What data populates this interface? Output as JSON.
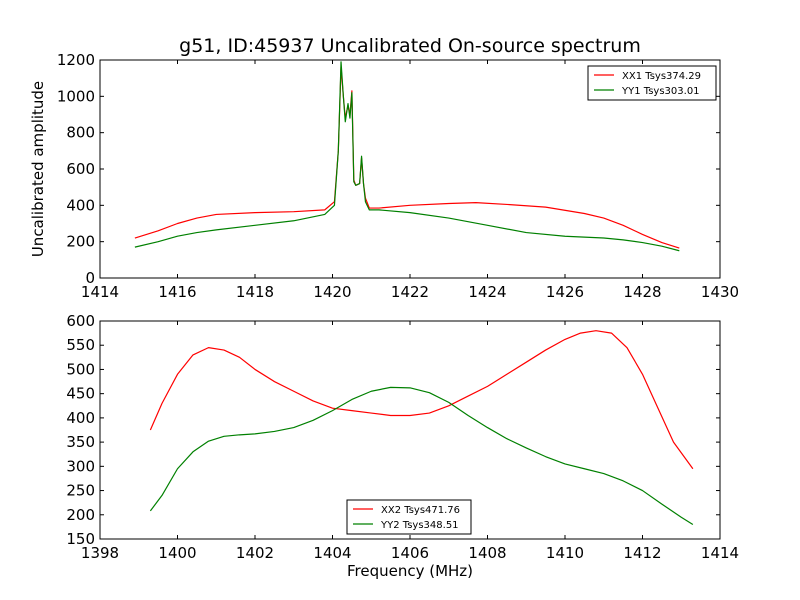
{
  "figure": {
    "title": "g51, ID:45937 Uncalibrated On-source spectrum"
  },
  "chart_data": [
    {
      "type": "line",
      "title": "g51, ID:45937 Uncalibrated On-source spectrum",
      "xlabel": "",
      "ylabel": "Uncalibrated amplitude",
      "xlim": [
        1414,
        1430
      ],
      "ylim": [
        0,
        1200
      ],
      "xticks": [
        1414,
        1416,
        1418,
        1420,
        1422,
        1424,
        1426,
        1428,
        1430
      ],
      "yticks": [
        0,
        200,
        400,
        600,
        800,
        1000,
        1200
      ],
      "legend_position": "top-right",
      "grid": false,
      "series": [
        {
          "name": "XX1 Tsys374.29",
          "color": "#ff0000",
          "x": [
            1414.9,
            1415.5,
            1416.0,
            1416.5,
            1417.0,
            1418.0,
            1419.0,
            1419.8,
            1420.05,
            1420.15,
            1420.22,
            1420.28,
            1420.33,
            1420.4,
            1420.45,
            1420.5,
            1420.55,
            1420.6,
            1420.7,
            1420.75,
            1420.8,
            1420.85,
            1420.95,
            1421.2,
            1422.0,
            1423.0,
            1423.7,
            1424.5,
            1425.5,
            1426.5,
            1427.0,
            1427.5,
            1428.0,
            1428.5,
            1428.95
          ],
          "y": [
            220,
            260,
            300,
            330,
            350,
            360,
            365,
            375,
            420,
            700,
            1160,
            1000,
            880,
            950,
            900,
            1030,
            540,
            510,
            520,
            660,
            520,
            440,
            385,
            385,
            400,
            410,
            415,
            405,
            390,
            355,
            330,
            290,
            240,
            195,
            165
          ]
        },
        {
          "name": "YY1 Tsys303.01",
          "color": "#008000",
          "x": [
            1414.9,
            1415.5,
            1416.0,
            1416.5,
            1417.0,
            1418.0,
            1419.0,
            1419.8,
            1420.05,
            1420.15,
            1420.22,
            1420.28,
            1420.33,
            1420.4,
            1420.45,
            1420.5,
            1420.55,
            1420.6,
            1420.7,
            1420.75,
            1420.8,
            1420.85,
            1420.95,
            1421.2,
            1422.0,
            1423.0,
            1424.0,
            1425.0,
            1426.0,
            1427.0,
            1427.5,
            1428.0,
            1428.5,
            1428.95
          ],
          "y": [
            170,
            200,
            230,
            250,
            265,
            290,
            315,
            350,
            400,
            700,
            1190,
            1000,
            860,
            960,
            880,
            1020,
            530,
            510,
            520,
            670,
            520,
            420,
            375,
            375,
            360,
            330,
            290,
            250,
            230,
            220,
            210,
            195,
            175,
            150
          ]
        }
      ]
    },
    {
      "type": "line",
      "title": "",
      "xlabel": "Frequency (MHz)",
      "ylabel": "",
      "xlim": [
        1398,
        1414
      ],
      "ylim": [
        150,
        600
      ],
      "xticks": [
        1398,
        1400,
        1402,
        1404,
        1406,
        1408,
        1410,
        1412,
        1414
      ],
      "yticks": [
        150,
        200,
        250,
        300,
        350,
        400,
        450,
        500,
        550,
        600
      ],
      "legend_position": "bottom-center",
      "grid": false,
      "series": [
        {
          "name": "XX2 Tsys471.76",
          "color": "#ff0000",
          "x": [
            1399.3,
            1399.6,
            1400.0,
            1400.4,
            1400.8,
            1401.2,
            1401.6,
            1402.0,
            1402.5,
            1403.0,
            1403.5,
            1404.0,
            1404.5,
            1405.0,
            1405.5,
            1406.0,
            1406.5,
            1407.0,
            1407.5,
            1408.0,
            1408.5,
            1409.0,
            1409.5,
            1410.0,
            1410.4,
            1410.8,
            1411.2,
            1411.6,
            1412.0,
            1412.4,
            1412.8,
            1413.3
          ],
          "y": [
            375,
            430,
            490,
            530,
            545,
            540,
            525,
            500,
            475,
            455,
            435,
            420,
            415,
            410,
            405,
            405,
            410,
            425,
            445,
            465,
            490,
            515,
            540,
            562,
            575,
            580,
            575,
            545,
            490,
            420,
            350,
            295
          ]
        },
        {
          "name": "YY2 Tsys348.51",
          "color": "#008000",
          "x": [
            1399.3,
            1399.6,
            1400.0,
            1400.4,
            1400.8,
            1401.2,
            1401.6,
            1402.0,
            1402.5,
            1403.0,
            1403.5,
            1404.0,
            1404.5,
            1405.0,
            1405.5,
            1406.0,
            1406.5,
            1407.0,
            1407.5,
            1408.0,
            1408.5,
            1409.0,
            1409.5,
            1410.0,
            1410.5,
            1411.0,
            1411.5,
            1412.0,
            1412.5,
            1413.0,
            1413.3
          ],
          "y": [
            208,
            240,
            295,
            330,
            352,
            362,
            365,
            367,
            372,
            380,
            395,
            415,
            438,
            455,
            463,
            462,
            452,
            432,
            405,
            380,
            357,
            338,
            320,
            305,
            295,
            285,
            270,
            250,
            222,
            195,
            180
          ]
        }
      ]
    }
  ]
}
